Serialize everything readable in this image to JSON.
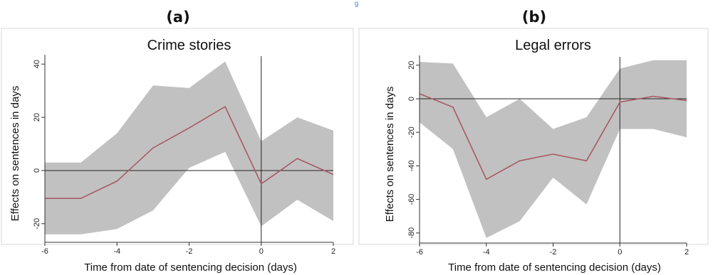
{
  "caption_fragment": "g",
  "colors": {
    "band": "#c1c1c1",
    "line": "#a85a66",
    "frame": "#d8d8d8",
    "axis": "#333333",
    "ref": "#222222"
  },
  "chart_data": [
    {
      "panel_label": "(a)",
      "type": "area",
      "title": "Crime stories",
      "xlabel": "Time from date of sentencing decision (days)",
      "ylabel": "Effects on sentences in days",
      "xlim": [
        -6,
        2
      ],
      "ylim": [
        -27,
        43
      ],
      "xticks": [
        -6,
        -4,
        -2,
        0,
        2
      ],
      "yticks": [
        -20,
        0,
        20,
        40
      ],
      "ref_x": 0,
      "ref_y": 0,
      "grid": false,
      "x": [
        -6,
        -5,
        -4,
        -3,
        -2,
        -1,
        0,
        1,
        2
      ],
      "series": [
        {
          "role": "upper",
          "values": [
            3,
            3,
            14,
            32,
            31,
            41,
            11,
            20,
            15
          ]
        },
        {
          "role": "estimate",
          "values": [
            -10.5,
            -10.5,
            -4,
            8.5,
            16,
            24,
            -5,
            4.5,
            -1.5
          ]
        },
        {
          "role": "lower",
          "values": [
            -24,
            -24,
            -22,
            -15,
            1,
            7,
            -21,
            -11,
            -19
          ]
        }
      ]
    },
    {
      "panel_label": "(b)",
      "type": "area",
      "title": "Legal errors",
      "xlabel": "Time from date of sentencing decision (days)",
      "ylabel": "Effects on sentences in days",
      "xlim": [
        -6,
        2
      ],
      "ylim": [
        -86,
        25
      ],
      "xticks": [
        -6,
        -4,
        -2,
        0,
        2
      ],
      "yticks": [
        -80,
        -60,
        -40,
        -20,
        0,
        20
      ],
      "ref_x": 0,
      "ref_y": 0,
      "grid": false,
      "x": [
        -6,
        -5,
        -4,
        -3,
        -2,
        -1,
        0,
        1,
        2
      ],
      "series": [
        {
          "role": "upper",
          "values": [
            22,
            21,
            -11,
            0,
            -18,
            -11,
            18,
            23,
            23
          ]
        },
        {
          "role": "estimate",
          "values": [
            3,
            -5,
            -48,
            -37,
            -33,
            -37,
            -2,
            1.5,
            -1
          ]
        },
        {
          "role": "lower",
          "values": [
            -14,
            -30,
            -83,
            -73,
            -47,
            -63,
            -18,
            -18,
            -23
          ]
        }
      ]
    }
  ]
}
